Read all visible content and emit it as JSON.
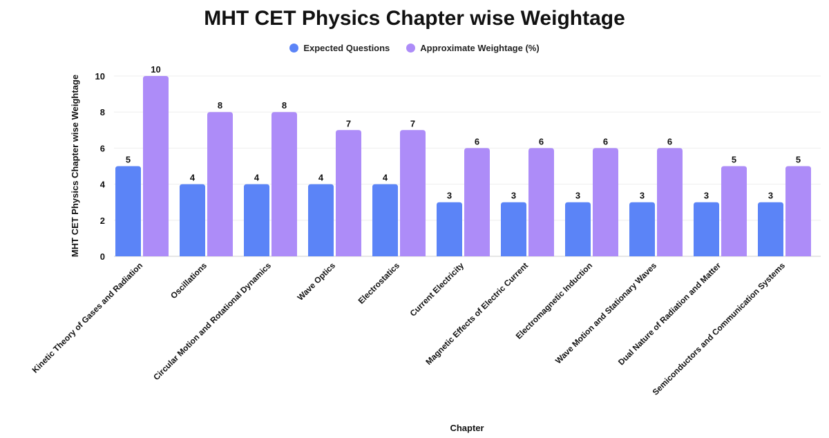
{
  "chart_data": {
    "type": "bar",
    "title": "MHT CET Physics Chapter wise Weightage",
    "xlabel": "Chapter",
    "ylabel": "MHT CET Physics Chapter wise Weightage",
    "ylim": [
      0,
      10
    ],
    "yticks": [
      0,
      2,
      4,
      6,
      8,
      10
    ],
    "grid": true,
    "legend_position": "top",
    "categories": [
      "Kinetic Theory of Gases and Radiation",
      "Oscillations",
      "Circular Motion and Rotational Dynamics",
      "Wave Optics",
      "Electrostatics",
      "Current Electricity",
      "Magnetic Effects of Electric Current",
      "Electromagnetic Induction",
      "Wave Motion and Stationary Waves",
      "Dual Nature of Radiation and Matter",
      "Semiconductors and Communication Systems"
    ],
    "series": [
      {
        "name": "Expected Questions",
        "color": "#5B84F7",
        "values": [
          5,
          4,
          4,
          4,
          4,
          3,
          3,
          3,
          3,
          3,
          3
        ]
      },
      {
        "name": "Approximate Weightage (%)",
        "color": "#AD8CF8",
        "values": [
          10,
          8,
          8,
          7,
          7,
          6,
          6,
          6,
          6,
          5,
          5
        ]
      }
    ]
  }
}
